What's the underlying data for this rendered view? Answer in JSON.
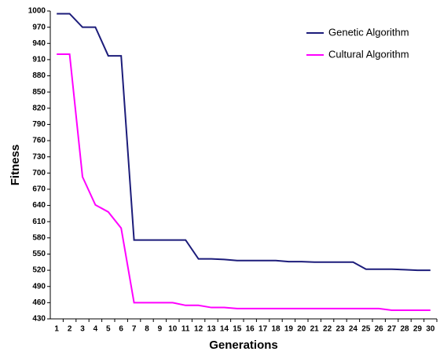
{
  "chart_data": {
    "type": "line",
    "x_label": "Generations",
    "y_label": "Fitness",
    "categories": [
      "1",
      "2",
      "3",
      "4",
      "5",
      "6",
      "7",
      "8",
      "9",
      "10",
      "11",
      "12",
      "13",
      "14",
      "15",
      "16",
      "17",
      "18",
      "19",
      "20",
      "21",
      "22",
      "23",
      "24",
      "25",
      "26",
      "27",
      "28",
      "29",
      "30"
    ],
    "series": [
      {
        "name": "Genetic Algorithm",
        "color": "#1c1c7a",
        "values": [
          995,
          995,
          970,
          970,
          917,
          917,
          576,
          576,
          576,
          576,
          576,
          541,
          541,
          540,
          538,
          538,
          538,
          538,
          536,
          536,
          535,
          535,
          535,
          535,
          522,
          522,
          522,
          521,
          520,
          520
        ]
      },
      {
        "name": "Cultural Algorithm",
        "color": "#ff00ff",
        "values": [
          920,
          920,
          693,
          641,
          628,
          598,
          460,
          460,
          460,
          460,
          455,
          455,
          451,
          451,
          449,
          449,
          449,
          449,
          449,
          449,
          449,
          449,
          449,
          449,
          449,
          449,
          446,
          446,
          446,
          446
        ]
      }
    ],
    "ylim": [
      430,
      1000
    ],
    "yticks": [
      430,
      460,
      490,
      520,
      550,
      580,
      610,
      640,
      670,
      700,
      730,
      760,
      790,
      820,
      850,
      880,
      910,
      940,
      970,
      1000
    ],
    "grid": false,
    "legend": "top-right"
  }
}
